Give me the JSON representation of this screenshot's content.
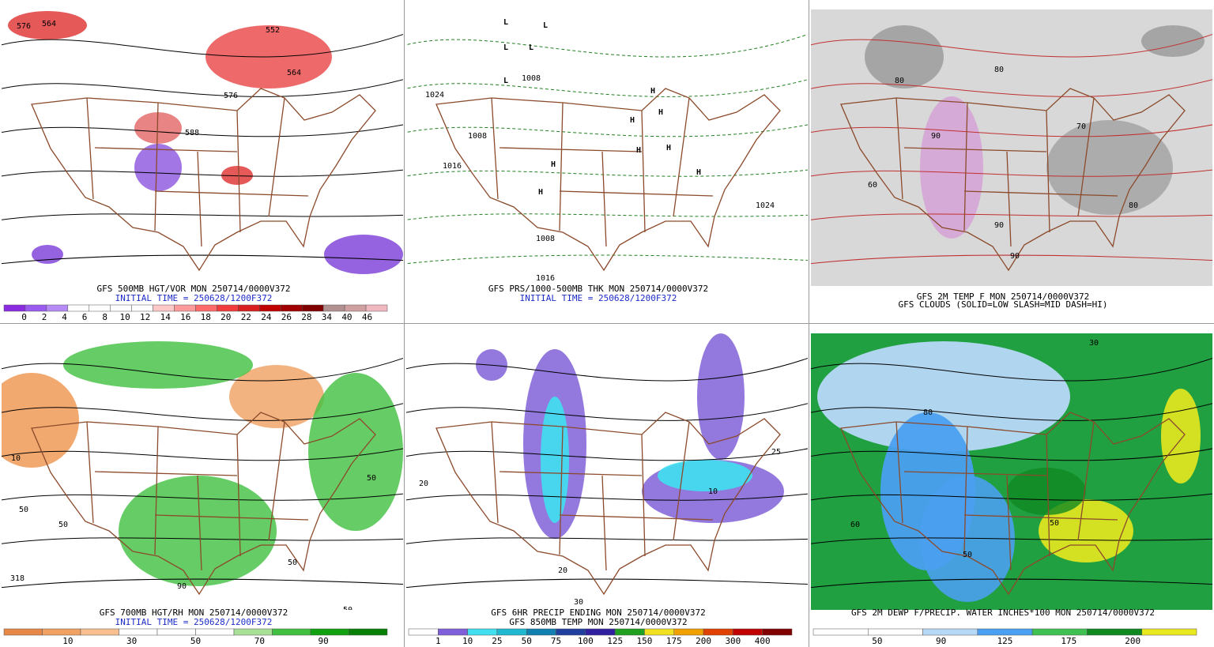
{
  "panels": [
    {
      "captions": [
        "GFS 500MB HGT/VOR MON 250714/0000V372",
        "INITIAL TIME = 250628/1200F372"
      ],
      "map_labels": [
        "576",
        "564",
        "552",
        "564",
        "576",
        "588"
      ],
      "colorbar": {
        "colors": [
          "#8a2be2",
          "#9a5cf0",
          "#b58cf5",
          "#ffffff",
          "#ffffff",
          "#ffffff",
          "#ffffff",
          "#ffc8c8",
          "#ff9a9a",
          "#ff6a6a",
          "#f03c3c",
          "#d81e1e",
          "#c00000",
          "#a00000",
          "#800000",
          "#b09090",
          "#d0a0a0",
          "#f0b8c0"
        ],
        "labels": [
          "0",
          "2",
          "4",
          "6",
          "8",
          "10",
          "12",
          "14",
          "16",
          "18",
          "20",
          "22",
          "24",
          "26",
          "28",
          "34",
          "40",
          "46"
        ]
      }
    },
    {
      "captions": [
        "GFS PRS/1000-500MB THK MON 250714/0000V372",
        "INITIAL TIME = 250628/1200F372"
      ],
      "map_labels": [
        "L",
        "L",
        "L",
        "L",
        "L",
        "H",
        "H",
        "H",
        "H",
        "H",
        "H",
        "H",
        "H",
        "1024",
        "1016",
        "1008",
        "1008",
        "1016",
        "1024",
        "1008"
      ]
    },
    {
      "captions": [
        "GFS 2M TEMP F MON 250714/0000V372",
        "GFS CLOUDS (SOLID=LOW SLASH=MID DASH=HI)"
      ],
      "map_labels": [
        "80",
        "90",
        "90",
        "80",
        "70",
        "60",
        "80",
        "90"
      ]
    },
    {
      "captions": [
        "GFS 700MB HGT/RH MON 250714/0000V372",
        "INITIAL TIME = 250628/1200F372"
      ],
      "map_labels": [
        "10",
        "50",
        "50",
        "50",
        "90",
        "318",
        "50",
        "50"
      ],
      "colorbar": {
        "colors": [
          "#e88848",
          "#f0a060",
          "#f8c090",
          "#ffffff",
          "#ffffff",
          "#ffffff",
          "#a8e098",
          "#40c040",
          "#10a010",
          "#088008"
        ],
        "labels": [
          "10",
          "30",
          "50",
          "70",
          "90"
        ]
      }
    },
    {
      "captions": [
        "GFS 6HR PRECIP ENDING MON 250714/0000V372",
        "GFS 850MB TEMP MON 250714/0000V372"
      ],
      "map_labels": [
        "20",
        "25",
        "10",
        "20",
        "30"
      ],
      "colorbar": {
        "colors": [
          "#ffffff",
          "#8060d8",
          "#40e0f0",
          "#20b8d0",
          "#1080b0",
          "#2040a0",
          "#3020a0",
          "#20a020",
          "#f0e020",
          "#f0a000",
          "#e04000",
          "#c00000",
          "#800000"
        ],
        "labels": [
          "1",
          "10",
          "25",
          "50",
          "75",
          "100",
          "125",
          "150",
          "175",
          "200",
          "300",
          "400"
        ]
      }
    },
    {
      "captions": [
        "GFS 2M DEWP F/PRECIP. WATER INCHES*100 MON 250714/0000V372"
      ],
      "map_labels": [
        "50",
        "50",
        "60",
        "80",
        "30"
      ],
      "colorbar": {
        "colors": [
          "#ffffff",
          "#ffffff",
          "#b8d8f8",
          "#4aa0f0",
          "#40c050",
          "#108820",
          "#e8e820"
        ],
        "labels": [
          "50",
          "90",
          "125",
          "175",
          "200"
        ]
      }
    }
  ]
}
